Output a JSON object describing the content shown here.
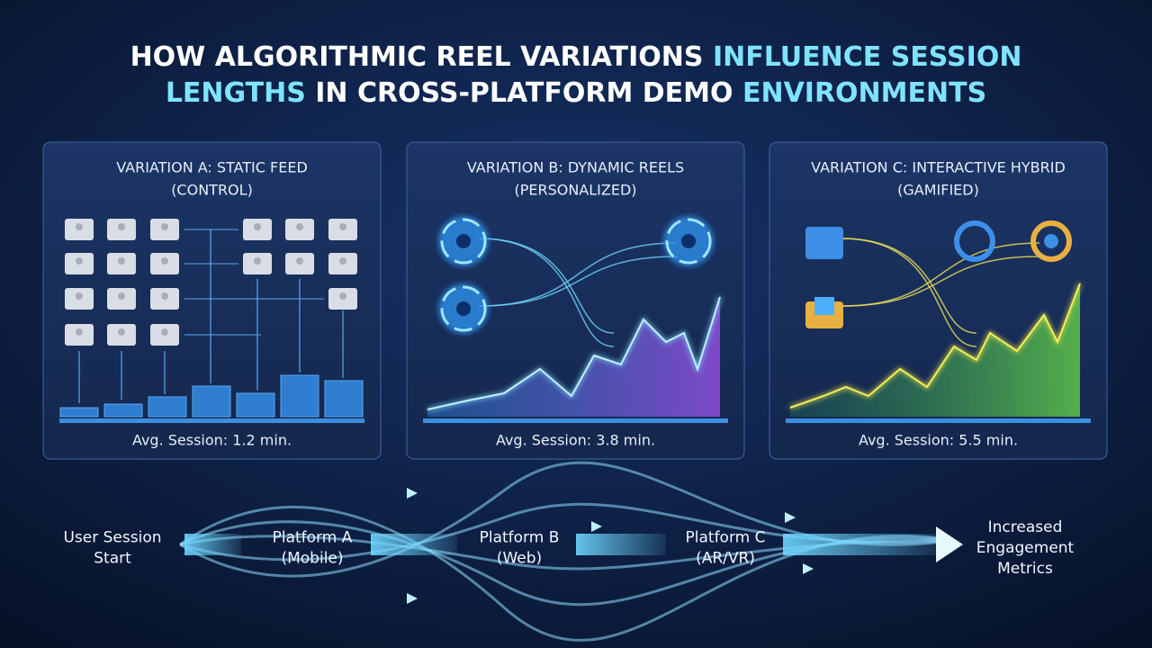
{
  "title": [
    [
      {
        "text": "HOW ALGORITHMIC REEL VARIATIONS ",
        "highlight": false
      },
      {
        "text": "INFLUENCE SESSION",
        "highlight": true
      }
    ],
    [
      {
        "text": "LENGTHS",
        "highlight": true
      },
      {
        "text": " IN CROSS-PLATFORM DEMO ",
        "highlight": false
      },
      {
        "text": "ENVIRONMENTS",
        "highlight": true
      }
    ]
  ],
  "panels": [
    {
      "title": [
        "VARIATION A: STATIC FEED",
        "(CONTROL)"
      ],
      "footer": "Avg. Session: 1.2 min."
    },
    {
      "title": [
        "VARIATION B: DYNAMIC REELS",
        "(PERSONALIZED)"
      ],
      "footer": "Avg. Session: 3.8 min."
    },
    {
      "title": [
        "VARIATION C: INTERACTIVE HYBRID",
        "(GAMIFIED)"
      ],
      "footer": "Avg. Session: 5.5 min."
    }
  ],
  "flow": [
    {
      "label": [
        "User Session",
        "Start"
      ]
    },
    {
      "label": [
        "Platform A",
        "(Mobile)"
      ]
    },
    {
      "label": [
        "Platform B",
        "(Web)"
      ]
    },
    {
      "label": [
        "Platform C",
        "(AR/VR)"
      ]
    },
    {
      "label": [
        "Increased",
        "Engagement",
        "Metrics"
      ]
    }
  ]
}
